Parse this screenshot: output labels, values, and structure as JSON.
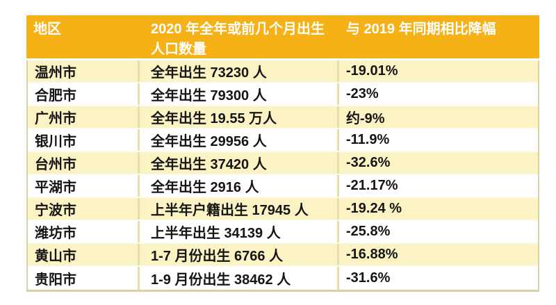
{
  "table": {
    "header": {
      "region": "地区",
      "births_line1": "2020 年全年或前几个月出生",
      "births_line2": "人口数量",
      "change": "与 2019 年同期相比降幅"
    },
    "rows": [
      {
        "region": "温州市",
        "births": "全年出生 73230 人",
        "change": "-19.01%"
      },
      {
        "region": "合肥市",
        "births": "全年出生 79300 人",
        "change": "-23%"
      },
      {
        "region": "广州市",
        "births": "全年出生 19.55 万人",
        "change": "约-9%"
      },
      {
        "region": "银川市",
        "births": "全年出生 29956 人",
        "change": "-11.9%"
      },
      {
        "region": "台州市",
        "births": "全年出生 37420 人",
        "change": "-32.6%"
      },
      {
        "region": "平湖市",
        "births": "全年出生 2916 人",
        "change": "-21.17%"
      },
      {
        "region": "宁波市",
        "births": "上半年户籍出生 17945 人",
        "change": "-19.24 %"
      },
      {
        "region": "潍坊市",
        "births": "上半年出生 34139 人",
        "change": "-25.8%"
      },
      {
        "region": "黄山市",
        "births": "1-7 月份出生 6766 人",
        "change": "-16.88%"
      },
      {
        "region": "贵阳市",
        "births": "1-9 月份出生 38462 人",
        "change": "-31.6%"
      }
    ],
    "colors": {
      "header_bg": "#F6B117",
      "header_text": "#FFFFFF",
      "row_alt_bg": "#FCF3C4",
      "row_bg": "#FFFFFF",
      "v_separator": "#E8DEAC",
      "row_divider": "#FBFBF2",
      "outer_border": "#D8D3A3",
      "text": "#151515"
    }
  },
  "chart_data": {
    "type": "table",
    "title": "",
    "columns": [
      "地区",
      "2020 年全年或前几个月出生人口数量",
      "与 2019 年同期相比降幅"
    ],
    "rows": [
      [
        "温州市",
        "全年出生 73230 人",
        "-19.01%"
      ],
      [
        "合肥市",
        "全年出生 79300 人",
        "-23%"
      ],
      [
        "广州市",
        "全年出生 19.55 万人",
        "约-9%"
      ],
      [
        "银川市",
        "全年出生 29956 人",
        "-11.9%"
      ],
      [
        "台州市",
        "全年出生 37420 人",
        "-32.6%"
      ],
      [
        "平湖市",
        "全年出生 2916 人",
        "-21.17%"
      ],
      [
        "宁波市",
        "上半年户籍出生 17945 人",
        "-19.24 %"
      ],
      [
        "潍坊市",
        "上半年出生 34139 人",
        "-25.8%"
      ],
      [
        "黄山市",
        "1-7 月份出生 6766 人",
        "-16.88%"
      ],
      [
        "贵阳市",
        "1-9 月份出生 38462 人",
        "-31.6%"
      ]
    ],
    "layout_hints": {
      "header_rows": 1,
      "row_striping": "odd rows cream (#FCF3C4), even rows white",
      "header_style": "gold background (#F6B117), white bold text"
    }
  }
}
